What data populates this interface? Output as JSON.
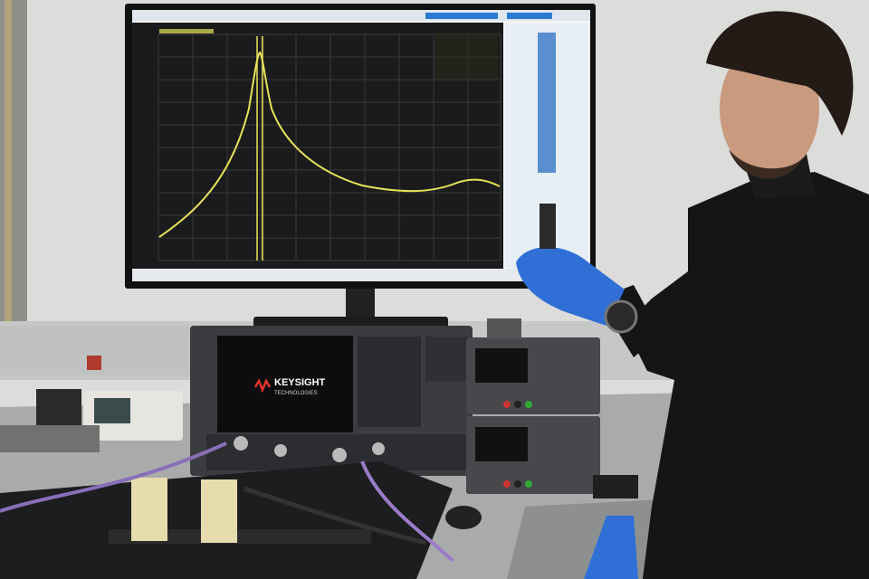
{
  "instrument": {
    "brand": "KEYSIGHT",
    "subtitle": "TECHNOLOGIES"
  }
}
